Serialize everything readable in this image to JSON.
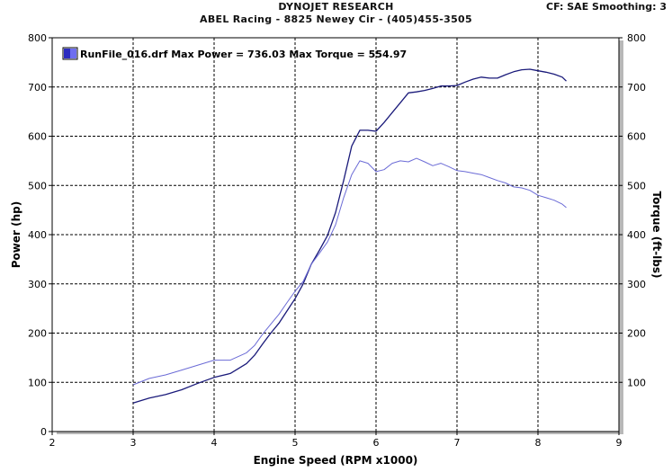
{
  "header": {
    "title": "DYNOJET RESEARCH",
    "subtitle": "ABEL Racing - 8825 Newey Cir - (405)455-3505",
    "settings": "CF: SAE  Smoothing: 3"
  },
  "colors": {
    "power": "#1a1a7a",
    "torque": "#6b6bd6",
    "plot_bg": "#ffffff",
    "frame_shadow": "#b8b8b8"
  },
  "chart_data": {
    "type": "line",
    "title": "",
    "xlabel": "Engine Speed (RPM x1000)",
    "ylabel": "Power (hp)",
    "y2label": "Torque (ft-lbs)",
    "xlim": [
      2,
      9
    ],
    "ylim": [
      0,
      800
    ],
    "y2lim": [
      0,
      800
    ],
    "xticks": [
      "2",
      "3",
      "4",
      "5",
      "6",
      "7",
      "8",
      "9"
    ],
    "yticks": [
      "0",
      "100",
      "200",
      "300",
      "400",
      "500",
      "600",
      "700",
      "800"
    ],
    "y2ticks": [
      "100",
      "200",
      "300",
      "400",
      "500",
      "600",
      "700",
      "800"
    ],
    "grid": true,
    "legend": {
      "position": "top-left",
      "label": "RunFile_016.drf Max Power = 736.03 Max Torque = 554.97"
    },
    "series": [
      {
        "key": "power",
        "x": [
          3.0,
          3.2,
          3.4,
          3.6,
          3.8,
          4.0,
          4.2,
          4.4,
          4.5,
          4.6,
          4.7,
          4.8,
          4.9,
          5.0,
          5.1,
          5.2,
          5.3,
          5.4,
          5.5,
          5.6,
          5.7,
          5.8,
          5.9,
          6.0,
          6.1,
          6.2,
          6.3,
          6.4,
          6.5,
          6.6,
          6.7,
          6.8,
          6.9,
          7.0,
          7.1,
          7.2,
          7.3,
          7.4,
          7.5,
          7.6,
          7.7,
          7.8,
          7.9,
          8.0,
          8.1,
          8.2,
          8.3,
          8.35
        ],
        "values": [
          58,
          68,
          75,
          85,
          98,
          110,
          118,
          138,
          155,
          178,
          200,
          220,
          245,
          270,
          300,
          340,
          368,
          398,
          445,
          510,
          580,
          612,
          612,
          610,
          628,
          648,
          668,
          688,
          690,
          693,
          697,
          702,
          702,
          703,
          710,
          716,
          720,
          718,
          718,
          725,
          731,
          735,
          736,
          733,
          730,
          726,
          720,
          712
        ]
      },
      {
        "key": "torque",
        "x": [
          3.0,
          3.2,
          3.4,
          3.6,
          3.8,
          4.0,
          4.2,
          4.4,
          4.5,
          4.6,
          4.7,
          4.8,
          4.9,
          5.0,
          5.1,
          5.2,
          5.3,
          5.4,
          5.5,
          5.6,
          5.7,
          5.8,
          5.9,
          6.0,
          6.1,
          6.2,
          6.3,
          6.4,
          6.5,
          6.6,
          6.7,
          6.8,
          6.9,
          7.0,
          7.1,
          7.2,
          7.3,
          7.4,
          7.5,
          7.6,
          7.7,
          7.8,
          7.9,
          8.0,
          8.1,
          8.2,
          8.3,
          8.35
        ],
        "values": [
          95,
          108,
          115,
          125,
          135,
          145,
          145,
          160,
          175,
          198,
          218,
          238,
          262,
          285,
          305,
          340,
          362,
          385,
          420,
          475,
          522,
          550,
          545,
          528,
          532,
          545,
          550,
          548,
          555,
          548,
          540,
          545,
          538,
          530,
          528,
          525,
          522,
          516,
          510,
          505,
          497,
          495,
          490,
          480,
          475,
          470,
          462,
          455
        ]
      }
    ]
  }
}
